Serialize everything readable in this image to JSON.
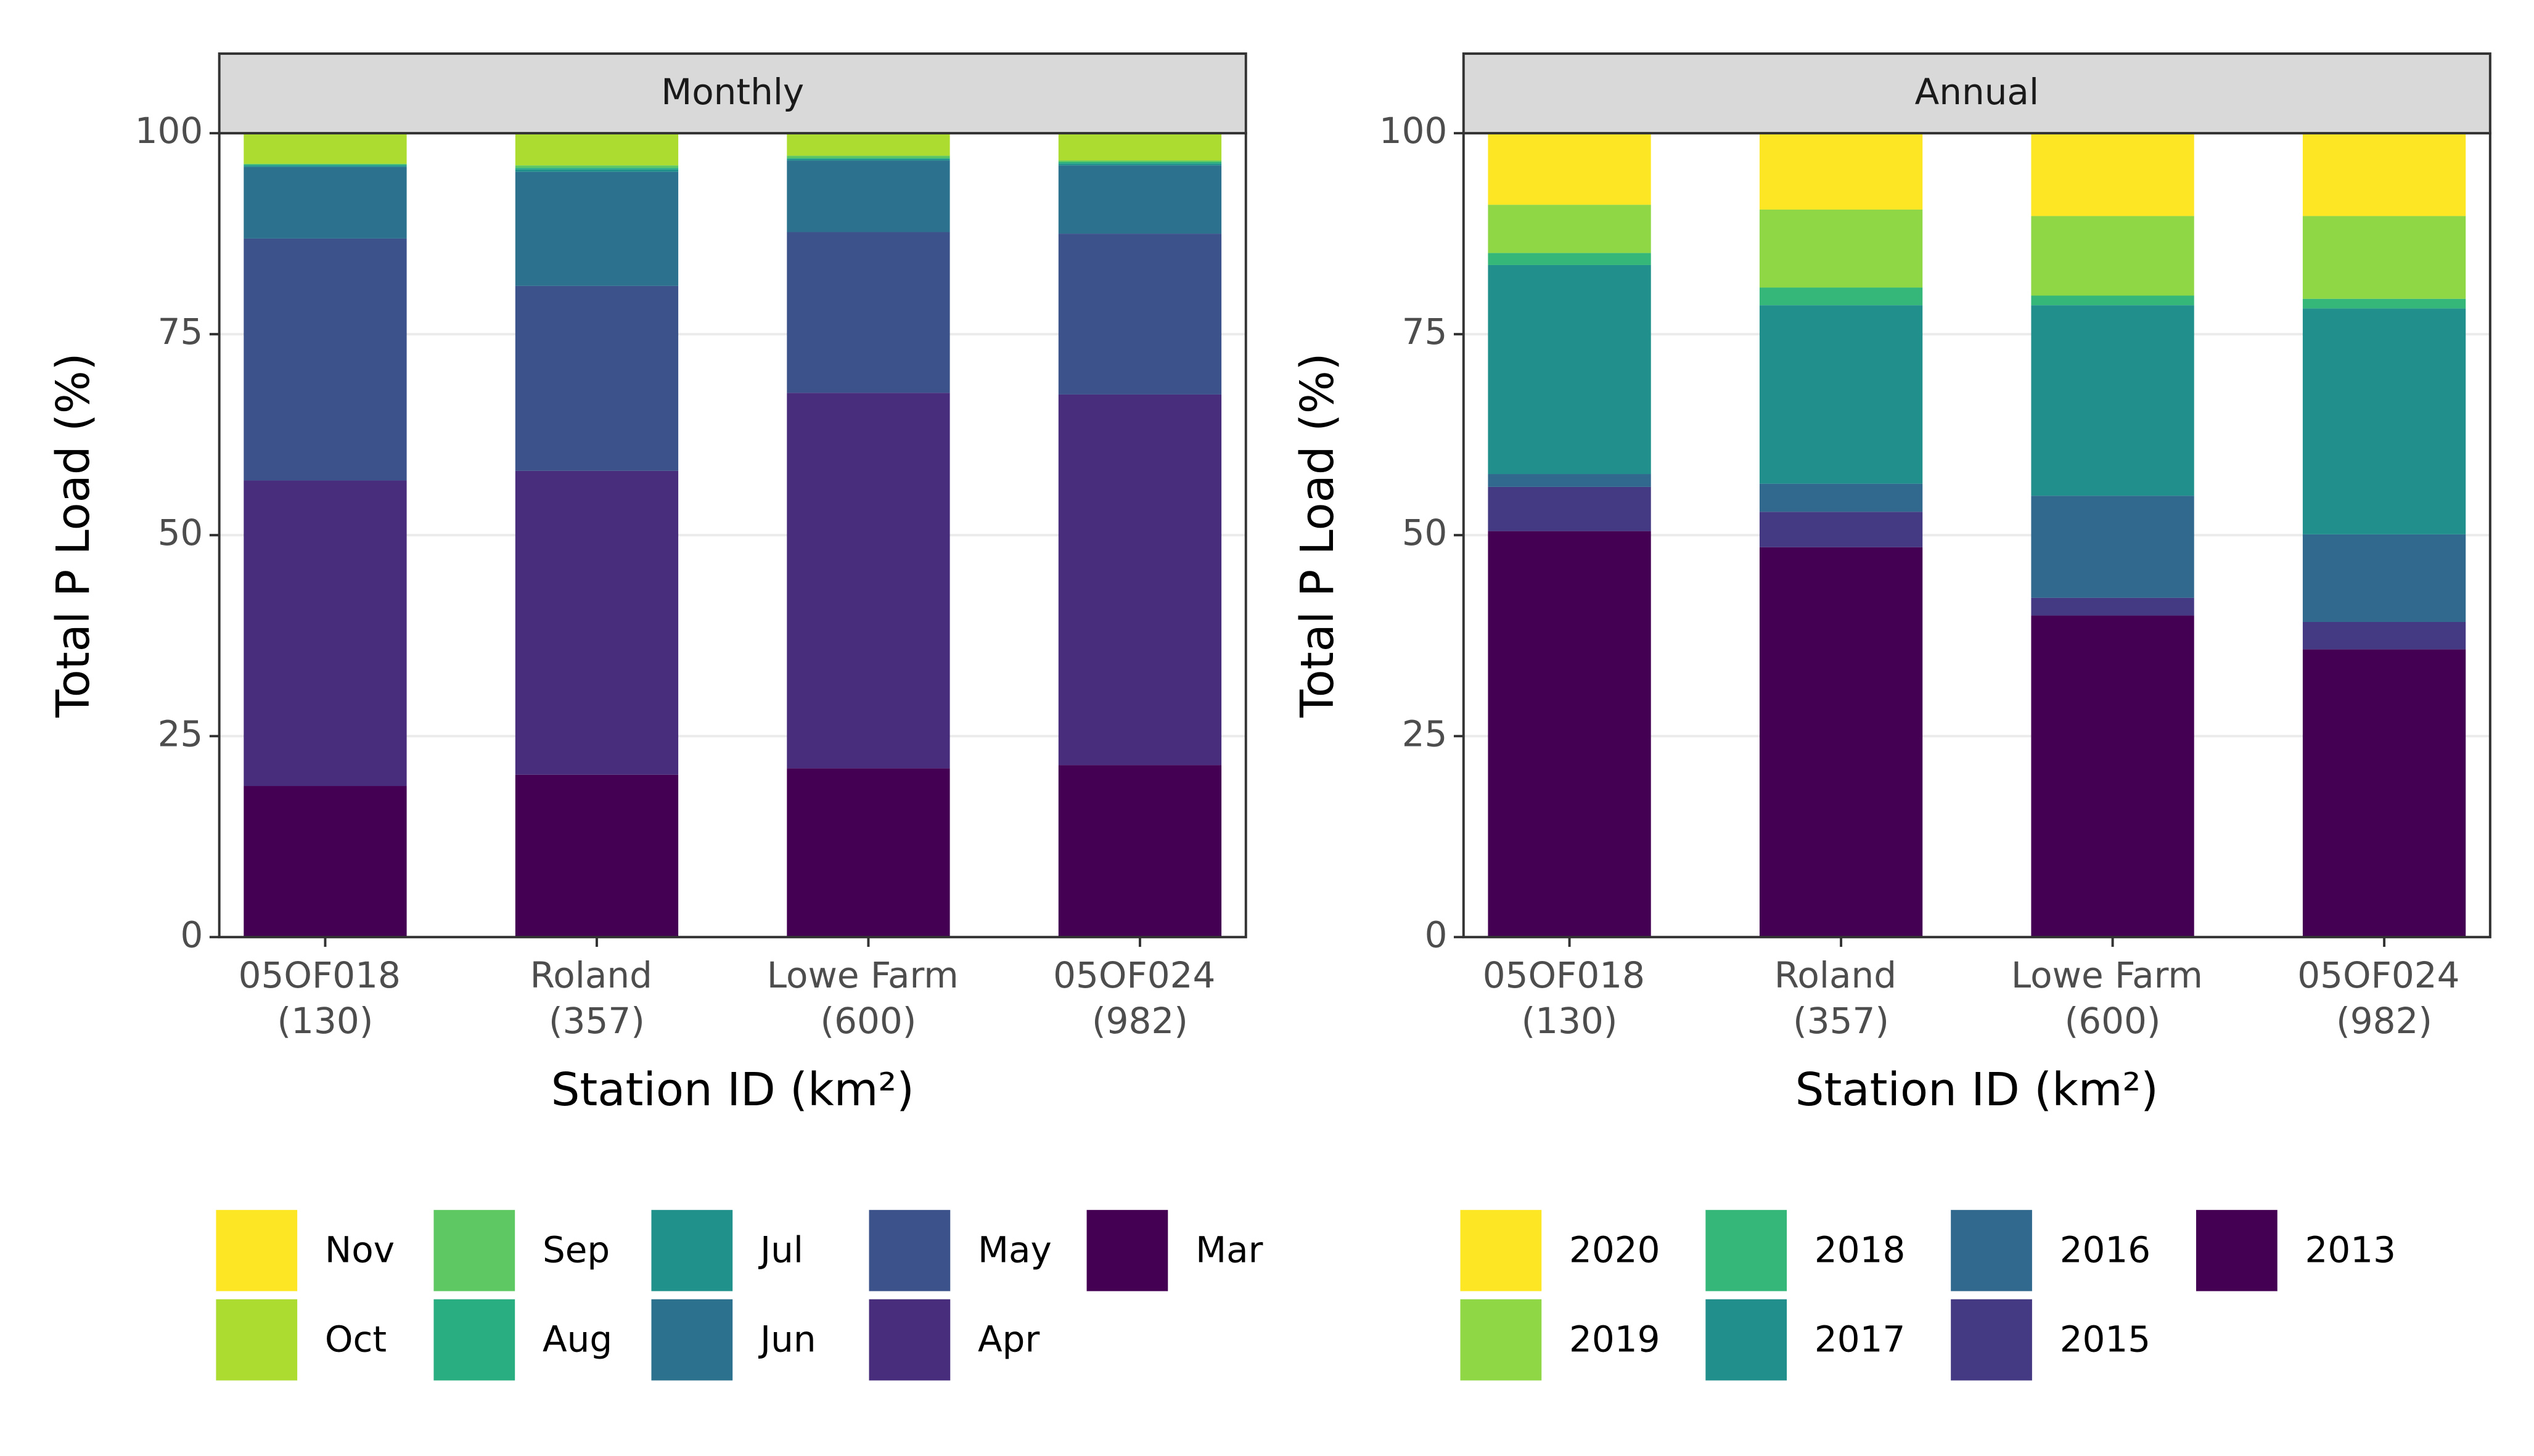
{
  "chart_data": [
    {
      "type": "bar",
      "stacked": true,
      "title": "Monthly",
      "x_label": "Station ID (km²)",
      "y_label": "Total P Load (%)",
      "categories": [
        "05OF018\n(130)",
        "Roland\n(357)",
        "Lowe Farm\n(600)",
        "05OF024\n(982)"
      ],
      "ylim": [
        0,
        100
      ],
      "yticks": [
        0,
        25,
        50,
        75,
        100
      ],
      "grid": true,
      "series": [
        {
          "name": "Mar",
          "color": "#440154",
          "values": [
            18.8,
            20.2,
            21.0,
            21.4
          ]
        },
        {
          "name": "Apr",
          "color": "#472d7b",
          "values": [
            38.0,
            37.8,
            46.7,
            46.1
          ]
        },
        {
          "name": "May",
          "color": "#3b528b",
          "values": [
            30.1,
            23.0,
            20.0,
            20.0
          ]
        },
        {
          "name": "Jun",
          "color": "#2c728e",
          "values": [
            8.9,
            14.2,
            8.9,
            8.5
          ]
        },
        {
          "name": "Jul",
          "color": "#21918c",
          "values": [
            0.2,
            0.3,
            0.2,
            0.2
          ]
        },
        {
          "name": "Aug",
          "color": "#28ae80",
          "values": [
            0.1,
            0.2,
            0.1,
            0.2
          ]
        },
        {
          "name": "Sep",
          "color": "#5ec962",
          "values": [
            0.1,
            0.3,
            0.3,
            0.2
          ]
        },
        {
          "name": "Oct",
          "color": "#addc30",
          "values": [
            3.8,
            4.0,
            2.8,
            3.4
          ]
        },
        {
          "name": "Nov",
          "color": "#fde725",
          "values": [
            0,
            0,
            0,
            0
          ]
        }
      ]
    },
    {
      "type": "bar",
      "stacked": true,
      "title": "Annual",
      "x_label": "Station ID (km²)",
      "y_label": "Total P Load (%)",
      "categories": [
        "05OF018\n(130)",
        "Roland\n(357)",
        "Lowe Farm\n(600)",
        "05OF024\n(982)"
      ],
      "ylim": [
        0,
        100
      ],
      "yticks": [
        0,
        25,
        50,
        75,
        100
      ],
      "grid": true,
      "series": [
        {
          "name": "2013",
          "color": "#440154",
          "values": [
            50.5,
            48.5,
            40.0,
            35.8
          ]
        },
        {
          "name": "2015",
          "color": "#443a83",
          "values": [
            5.5,
            4.4,
            2.2,
            3.4
          ]
        },
        {
          "name": "2016",
          "color": "#31688e",
          "values": [
            1.6,
            3.5,
            12.7,
            10.9
          ]
        },
        {
          "name": "2017",
          "color": "#21908c",
          "values": [
            26.0,
            22.2,
            23.7,
            28.1
          ]
        },
        {
          "name": "2018",
          "color": "#35b779",
          "values": [
            1.5,
            2.2,
            1.2,
            1.2
          ]
        },
        {
          "name": "2019",
          "color": "#8fd744",
          "values": [
            6.0,
            9.7,
            9.9,
            10.3
          ]
        },
        {
          "name": "2020",
          "color": "#fde725",
          "values": [
            8.9,
            9.5,
            10.3,
            10.3
          ]
        }
      ]
    }
  ]
}
